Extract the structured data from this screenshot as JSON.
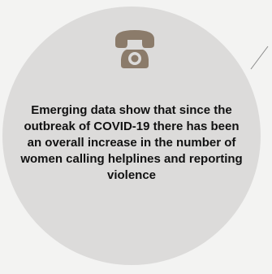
{
  "icons": {
    "phone": "telephone-icon"
  },
  "colors": {
    "page_background": "#f3f3f2",
    "circle": "#dcdbda",
    "icon": "#8b7b6a",
    "text": "#111111",
    "line": "#8a8a8a"
  },
  "callout": {
    "text": "Emerging data show that since the outbreak of COVID-19 there has been an overall increase in the number of women calling helplines and reporting violence"
  }
}
